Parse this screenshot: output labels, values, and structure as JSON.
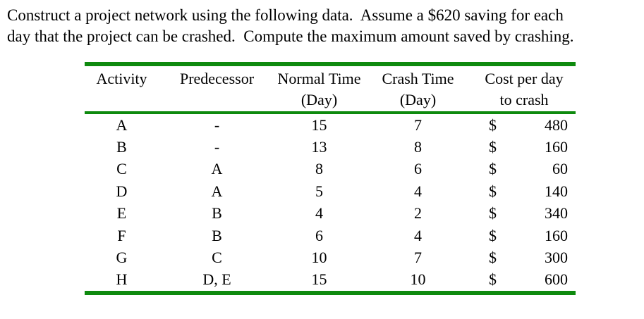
{
  "theme": {
    "rule-green": "#0e8a0e",
    "text": "#000000",
    "background": "#ffffff"
  },
  "title": {
    "lines": [
      "Construct a project network using the following data.  Assume a $620 saving for each",
      "day that the project can be crashed.  Compute the maximum amount saved by crashing."
    ]
  },
  "table": {
    "columns": [
      {
        "title": "Activity",
        "subtitle": ""
      },
      {
        "title": "Predecessor",
        "subtitle": ""
      },
      {
        "title": "Normal Time",
        "subtitle": "(Day)"
      },
      {
        "title": "Crash Time",
        "subtitle": "(Day)"
      },
      {
        "title": "Cost per day",
        "subtitle": "to crash"
      }
    ],
    "rows": [
      {
        "activity": "A",
        "predecessor": "-",
        "normal_time": "15",
        "crash_time": "7",
        "currency": "$",
        "cost": "480"
      },
      {
        "activity": "B",
        "predecessor": "-",
        "normal_time": "13",
        "crash_time": "8",
        "currency": "$",
        "cost": "160"
      },
      {
        "activity": "C",
        "predecessor": "A",
        "normal_time": "8",
        "crash_time": "6",
        "currency": "$",
        "cost": "60"
      },
      {
        "activity": "D",
        "predecessor": "A",
        "normal_time": "5",
        "crash_time": "4",
        "currency": "$",
        "cost": "140"
      },
      {
        "activity": "E",
        "predecessor": "B",
        "normal_time": "4",
        "crash_time": "2",
        "currency": "$",
        "cost": "340"
      },
      {
        "activity": "F",
        "predecessor": "B",
        "normal_time": "6",
        "crash_time": "4",
        "currency": "$",
        "cost": "160"
      },
      {
        "activity": "G",
        "predecessor": "C",
        "normal_time": "10",
        "crash_time": "7",
        "currency": "$",
        "cost": "300"
      },
      {
        "activity": "H",
        "predecessor": "D, E",
        "normal_time": "15",
        "crash_time": "10",
        "currency": "$",
        "cost": "600"
      }
    ]
  }
}
